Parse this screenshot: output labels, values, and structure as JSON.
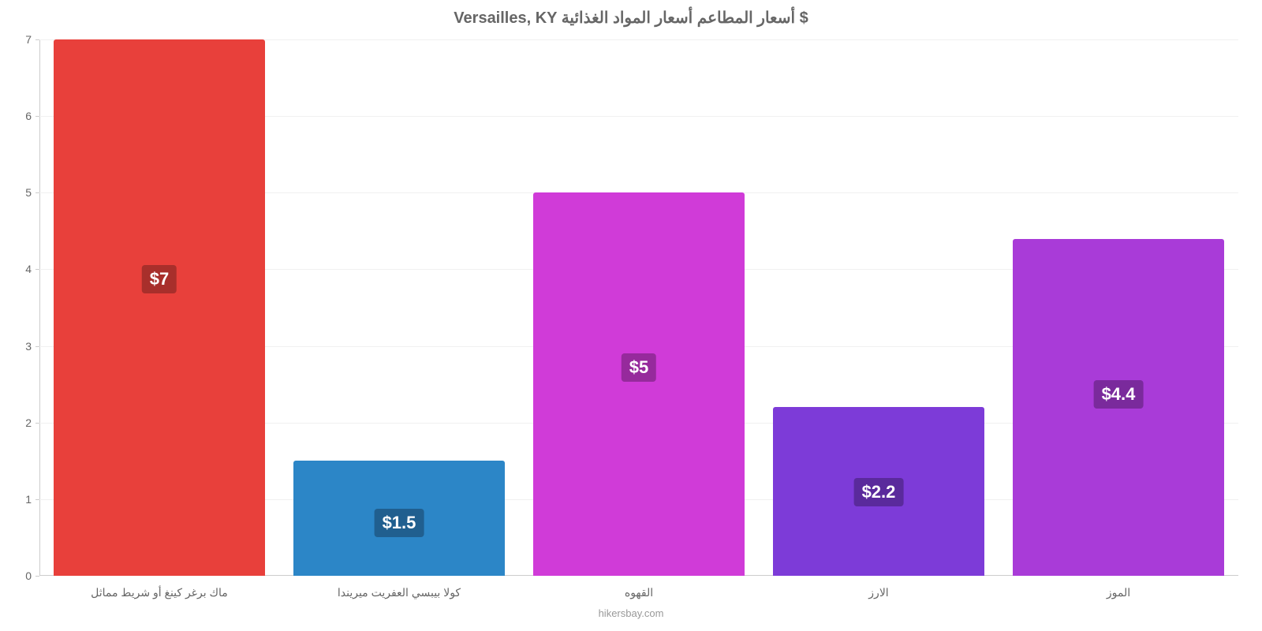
{
  "chart": {
    "type": "bar",
    "title": "Versailles, KY أسعار المطاعم أسعار المواد الغذائية $",
    "title_fontsize": 20,
    "title_color": "#666666",
    "background_color": "#ffffff",
    "grid_color": "#f0f0f0",
    "axis_color": "#cccccc",
    "label_color": "#666666",
    "categories": [
      "ماك برغر كينغ أو شريط مماثل",
      "كولا بيبسي العفريت ميريندا",
      "القهوه",
      "الارز",
      "الموز"
    ],
    "values": [
      7,
      1.5,
      5,
      2.2,
      4.4
    ],
    "display_labels": [
      "$7",
      "$1.5",
      "$5",
      "$2.2",
      "$4.4"
    ],
    "bar_colors": [
      "#e8403b",
      "#2c86c7",
      "#d03bd8",
      "#7d3bd8",
      "#a93bd8"
    ],
    "label_bg_colors": [
      "#a82f2b",
      "#205f8f",
      "#962a9c",
      "#5a2a9c",
      "#7a2a9c"
    ],
    "label_fontsize": 22,
    "xlabel_fontsize": 14,
    "ylabel_fontsize": 14,
    "ylim": [
      0,
      7
    ],
    "yticks": [
      0,
      1,
      2,
      3,
      4,
      5,
      6,
      7
    ],
    "bar_width": 0.88,
    "source": "hikersbay.com",
    "source_color": "#999999",
    "source_fontsize": 13
  }
}
